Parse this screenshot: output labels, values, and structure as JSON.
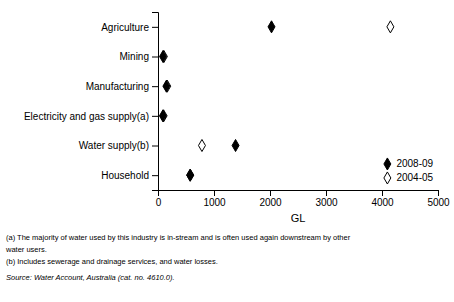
{
  "chart_data": {
    "type": "dot",
    "orientation": "horizontal",
    "categories": [
      "Agriculture",
      "Mining",
      "Manufacturing",
      "Electricity and gas supply(a)",
      "Water supply(b)",
      "Household"
    ],
    "series": [
      {
        "name": "2008-09",
        "color": "#000000",
        "marker": "diamond",
        "values": [
          2027,
          90,
          150,
          88,
          1385,
          575
        ]
      },
      {
        "name": "2004-05",
        "color": "#000000",
        "marker": "open-diamond",
        "values": [
          4150,
          105,
          165,
          100,
          785,
          575
        ]
      }
    ],
    "x_label": "GL",
    "xlim": [
      0,
      5000
    ],
    "xticks": [
      0,
      1000,
      2000,
      3000,
      4000,
      5000
    ],
    "legend": "lower right",
    "annotations": [
      "(a) The majority of water used by this industry is in-stream and is often used again downstream by other",
      "water users.",
      "(b) Includes sewerage and drainage services, and water losses.",
      "Source: Water Account, Australia (cat.  no.  4610.0)."
    ]
  }
}
